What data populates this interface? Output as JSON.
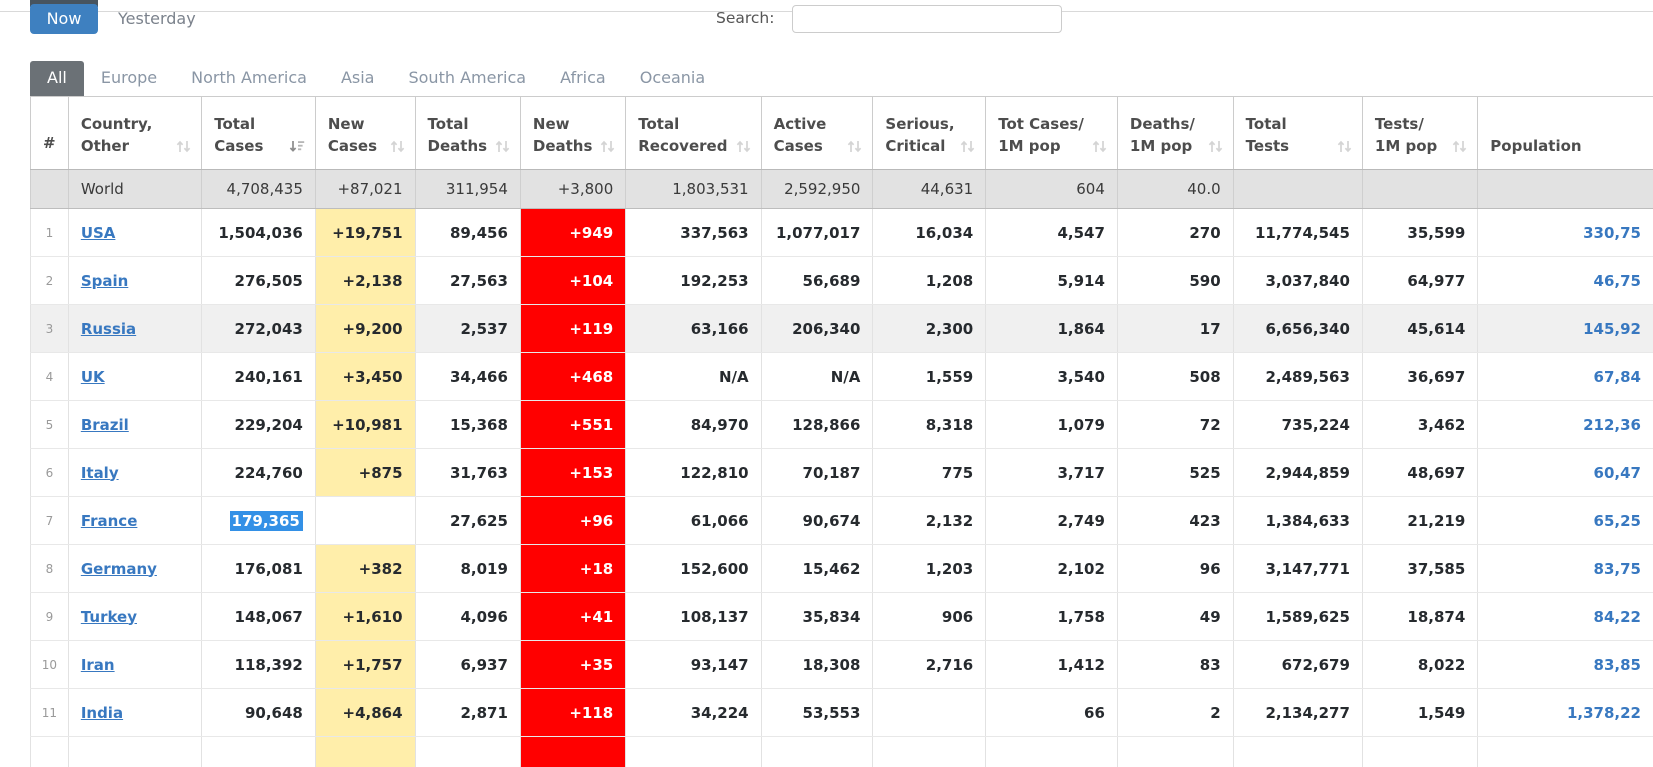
{
  "topbar": {
    "now_label": "Now",
    "yesterday_label": "Yesterday",
    "search_label": "Search:",
    "search_value": "",
    "search_placeholder": ""
  },
  "tabs": [
    {
      "label": "All",
      "active": true
    },
    {
      "label": "Europe",
      "active": false
    },
    {
      "label": "North America",
      "active": false
    },
    {
      "label": "Asia",
      "active": false
    },
    {
      "label": "South America",
      "active": false
    },
    {
      "label": "Africa",
      "active": false
    },
    {
      "label": "Oceania",
      "active": false
    }
  ],
  "table": {
    "columns": [
      {
        "id": "rank",
        "line1": "#",
        "line2": "",
        "sort": "none"
      },
      {
        "id": "country",
        "line1": "Country,",
        "line2": "Other",
        "sort": "both"
      },
      {
        "id": "total_cases",
        "line1": "Total",
        "line2": "Cases",
        "sort": "desc"
      },
      {
        "id": "new_cases",
        "line1": "New",
        "line2": "Cases",
        "sort": "both"
      },
      {
        "id": "total_deaths",
        "line1": "Total",
        "line2": "Deaths",
        "sort": "both"
      },
      {
        "id": "new_deaths",
        "line1": "New",
        "line2": "Deaths",
        "sort": "both"
      },
      {
        "id": "total_recovered",
        "line1": "Total",
        "line2": "Recovered",
        "sort": "both"
      },
      {
        "id": "active_cases",
        "line1": "Active",
        "line2": "Cases",
        "sort": "both"
      },
      {
        "id": "serious_critical",
        "line1": "Serious,",
        "line2": "Critical",
        "sort": "both"
      },
      {
        "id": "tot_cases_1m",
        "line1": "Tot Cases/",
        "line2": "1M pop",
        "sort": "both"
      },
      {
        "id": "deaths_1m",
        "line1": "Deaths/",
        "line2": "1M pop",
        "sort": "both"
      },
      {
        "id": "total_tests",
        "line1": "Total",
        "line2": "Tests",
        "sort": "both"
      },
      {
        "id": "tests_1m",
        "line1": "Tests/",
        "line2": "1M pop",
        "sort": "both"
      },
      {
        "id": "population",
        "line1": "",
        "line2": "Population",
        "sort": "none"
      }
    ],
    "rows": [
      {
        "world": true,
        "rank": "",
        "country": "World",
        "total_cases": "4,708,435",
        "new_cases": "+87,021",
        "total_deaths": "311,954",
        "new_deaths": "+3,800",
        "total_recovered": "1,803,531",
        "active_cases": "2,592,950",
        "serious_critical": "44,631",
        "tot_cases_1m": "604",
        "deaths_1m": "40.0",
        "total_tests": "",
        "tests_1m": "",
        "population": ""
      },
      {
        "rank": "1",
        "country": "USA",
        "total_cases": "1,504,036",
        "new_cases": "+19,751",
        "total_deaths": "89,456",
        "new_deaths": "+949",
        "total_recovered": "337,563",
        "active_cases": "1,077,017",
        "serious_critical": "16,034",
        "tot_cases_1m": "4,547",
        "deaths_1m": "270",
        "total_tests": "11,774,545",
        "tests_1m": "35,599",
        "population": "330,75"
      },
      {
        "rank": "2",
        "country": "Spain",
        "total_cases": "276,505",
        "new_cases": "+2,138",
        "total_deaths": "27,563",
        "new_deaths": "+104",
        "total_recovered": "192,253",
        "active_cases": "56,689",
        "serious_critical": "1,208",
        "tot_cases_1m": "5,914",
        "deaths_1m": "590",
        "total_tests": "3,037,840",
        "tests_1m": "64,977",
        "population": "46,75"
      },
      {
        "rank": "3",
        "country": "Russia",
        "hover": true,
        "total_cases": "272,043",
        "new_cases": "+9,200",
        "total_deaths": "2,537",
        "new_deaths": "+119",
        "total_recovered": "63,166",
        "active_cases": "206,340",
        "serious_critical": "2,300",
        "tot_cases_1m": "1,864",
        "deaths_1m": "17",
        "total_tests": "6,656,340",
        "tests_1m": "45,614",
        "population": "145,92"
      },
      {
        "rank": "4",
        "country": "UK",
        "total_cases": "240,161",
        "new_cases": "+3,450",
        "total_deaths": "34,466",
        "new_deaths": "+468",
        "total_recovered": "N/A",
        "active_cases": "N/A",
        "serious_critical": "1,559",
        "tot_cases_1m": "3,540",
        "deaths_1m": "508",
        "total_tests": "2,489,563",
        "tests_1m": "36,697",
        "population": "67,84"
      },
      {
        "rank": "5",
        "country": "Brazil",
        "total_cases": "229,204",
        "new_cases": "+10,981",
        "total_deaths": "15,368",
        "new_deaths": "+551",
        "total_recovered": "84,970",
        "active_cases": "128,866",
        "serious_critical": "8,318",
        "tot_cases_1m": "1,079",
        "deaths_1m": "72",
        "total_tests": "735,224",
        "tests_1m": "3,462",
        "population": "212,36"
      },
      {
        "rank": "6",
        "country": "Italy",
        "total_cases": "224,760",
        "new_cases": "+875",
        "total_deaths": "31,763",
        "new_deaths": "+153",
        "total_recovered": "122,810",
        "active_cases": "70,187",
        "serious_critical": "775",
        "tot_cases_1m": "3,717",
        "deaths_1m": "525",
        "total_tests": "2,944,859",
        "tests_1m": "48,697",
        "population": "60,47"
      },
      {
        "rank": "7",
        "country": "France",
        "selected_total_cases": true,
        "total_cases": "179,365",
        "new_cases": "",
        "total_deaths": "27,625",
        "new_deaths": "+96",
        "total_recovered": "61,066",
        "active_cases": "90,674",
        "serious_critical": "2,132",
        "tot_cases_1m": "2,749",
        "deaths_1m": "423",
        "total_tests": "1,384,633",
        "tests_1m": "21,219",
        "population": "65,25"
      },
      {
        "rank": "8",
        "country": "Germany",
        "total_cases": "176,081",
        "new_cases": "+382",
        "total_deaths": "8,019",
        "new_deaths": "+18",
        "total_recovered": "152,600",
        "active_cases": "15,462",
        "serious_critical": "1,203",
        "tot_cases_1m": "2,102",
        "deaths_1m": "96",
        "total_tests": "3,147,771",
        "tests_1m": "37,585",
        "population": "83,75"
      },
      {
        "rank": "9",
        "country": "Turkey",
        "total_cases": "148,067",
        "new_cases": "+1,610",
        "total_deaths": "4,096",
        "new_deaths": "+41",
        "total_recovered": "108,137",
        "active_cases": "35,834",
        "serious_critical": "906",
        "tot_cases_1m": "1,758",
        "deaths_1m": "49",
        "total_tests": "1,589,625",
        "tests_1m": "18,874",
        "population": "84,22"
      },
      {
        "rank": "10",
        "country": "Iran",
        "total_cases": "118,392",
        "new_cases": "+1,757",
        "total_deaths": "6,937",
        "new_deaths": "+35",
        "total_recovered": "93,147",
        "active_cases": "18,308",
        "serious_critical": "2,716",
        "tot_cases_1m": "1,412",
        "deaths_1m": "83",
        "total_tests": "672,679",
        "tests_1m": "8,022",
        "population": "83,85"
      },
      {
        "rank": "11",
        "country": "India",
        "total_cases": "90,648",
        "new_cases": "+4,864",
        "total_deaths": "2,871",
        "new_deaths": "+118",
        "total_recovered": "34,224",
        "active_cases": "53,553",
        "serious_critical": "",
        "tot_cases_1m": "66",
        "deaths_1m": "2",
        "total_tests": "2,134,277",
        "tests_1m": "1,549",
        "population": "1,378,22"
      },
      {
        "partial": true,
        "rank": "",
        "country": "",
        "total_cases": "",
        "new_cases": "",
        "total_deaths": "",
        "new_deaths": "",
        "total_recovered": "",
        "active_cases": "",
        "serious_critical": "",
        "tot_cases_1m": "",
        "deaths_1m": "",
        "total_tests": "",
        "tests_1m": "",
        "population": ""
      }
    ]
  },
  "colors": {
    "now_button_bg": "#3E80C0",
    "active_tab_bg": "#6B7176",
    "new_cases_highlight": "#FFEEAA",
    "new_deaths_highlight": "#FF0000",
    "link_color": "#3878C0",
    "selection_highlight": "#3390E6",
    "world_row_bg": "#E2E2E2",
    "hover_row_bg": "#F0F0F0"
  }
}
